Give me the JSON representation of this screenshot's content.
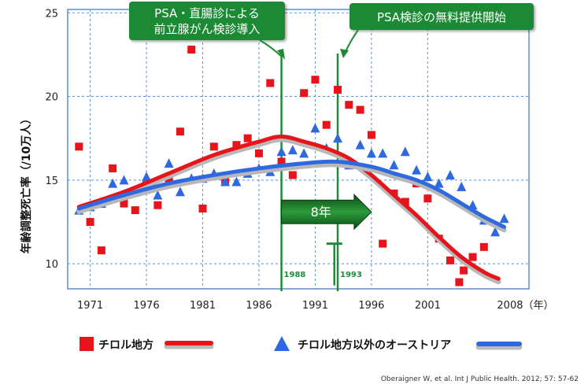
{
  "chart_data": {
    "type": "scatter",
    "ylabel": "年齢調整死亡率（/10万人）",
    "xlim": [
      1969,
      2010
    ],
    "ylim": [
      8.5,
      25.2
    ],
    "y_ticks": [
      10,
      15,
      20,
      25
    ],
    "x_ticks": [
      1971,
      1976,
      1981,
      1986,
      1991,
      1996,
      2001
    ],
    "x_last_tick": "2008（年）",
    "grid": true,
    "series": [
      {
        "name": "チロル地方",
        "marker": "square",
        "color": "#e8141b",
        "points": [
          [
            1970,
            17.0
          ],
          [
            1971,
            12.5
          ],
          [
            1972,
            10.8
          ],
          [
            1973,
            15.7
          ],
          [
            1974,
            13.6
          ],
          [
            1975,
            13.2
          ],
          [
            1976,
            14.7
          ],
          [
            1977,
            13.5
          ],
          [
            1978,
            15.1
          ],
          [
            1979,
            17.9
          ],
          [
            1980,
            22.8
          ],
          [
            1981,
            13.3
          ],
          [
            1982,
            17.0
          ],
          [
            1983,
            15.0
          ],
          [
            1984,
            17.1
          ],
          [
            1985,
            17.5
          ],
          [
            1986,
            16.6
          ],
          [
            1987,
            20.8
          ],
          [
            1988,
            16.1
          ],
          [
            1989,
            15.3
          ],
          [
            1990,
            20.2
          ],
          [
            1991,
            21.0
          ],
          [
            1992,
            18.3
          ],
          [
            1993,
            20.4
          ],
          [
            1994,
            19.5
          ],
          [
            1995,
            19.2
          ],
          [
            1996,
            17.7
          ],
          [
            1997,
            11.2
          ],
          [
            1998,
            14.2
          ],
          [
            1999,
            13.7
          ],
          [
            2000,
            14.8
          ],
          [
            2001,
            13.9
          ],
          [
            2002,
            11.5
          ],
          [
            2003,
            10.2
          ],
          [
            2003.8,
            8.9
          ],
          [
            2004.2,
            9.6
          ],
          [
            2005,
            10.4
          ],
          [
            2006,
            11.0
          ]
        ],
        "trend": [
          [
            1970,
            13.4
          ],
          [
            1974,
            14.3
          ],
          [
            1978,
            15.4
          ],
          [
            1982,
            16.5
          ],
          [
            1986,
            17.3
          ],
          [
            1988,
            17.6
          ],
          [
            1990,
            17.3
          ],
          [
            1992,
            16.9
          ],
          [
            1994,
            16.3
          ],
          [
            1996,
            15.3
          ],
          [
            1998,
            14.1
          ],
          [
            2000,
            12.9
          ],
          [
            2002,
            11.6
          ],
          [
            2004,
            10.4
          ],
          [
            2006,
            9.5
          ],
          [
            2007.3,
            9.1
          ]
        ]
      },
      {
        "name": "チロル地方以外のオーストリア",
        "marker": "triangle",
        "color": "#2f69e0",
        "points": [
          [
            1970,
            13.2
          ],
          [
            1971,
            13.4
          ],
          [
            1972,
            13.6
          ],
          [
            1973,
            14.8
          ],
          [
            1974,
            15.0
          ],
          [
            1975,
            14.3
          ],
          [
            1976,
            15.2
          ],
          [
            1977,
            14.1
          ],
          [
            1978,
            16.0
          ],
          [
            1979,
            14.3
          ],
          [
            1980,
            15.1
          ],
          [
            1981,
            15.1
          ],
          [
            1982,
            15.4
          ],
          [
            1983,
            14.9
          ],
          [
            1984,
            14.9
          ],
          [
            1985,
            15.4
          ],
          [
            1986,
            15.7
          ],
          [
            1987,
            15.5
          ],
          [
            1988,
            16.7
          ],
          [
            1989,
            16.8
          ],
          [
            1990,
            16.6
          ],
          [
            1991,
            18.1
          ],
          [
            1992,
            16.9
          ],
          [
            1993,
            17.5
          ],
          [
            1994,
            15.9
          ],
          [
            1995,
            17.1
          ],
          [
            1996,
            16.6
          ],
          [
            1997,
            16.6
          ],
          [
            1998,
            15.9
          ],
          [
            1999,
            16.7
          ],
          [
            2000,
            15.6
          ],
          [
            2001,
            15.2
          ],
          [
            2002,
            14.8
          ],
          [
            2003,
            15.3
          ],
          [
            2004,
            14.6
          ],
          [
            2005,
            13.5
          ],
          [
            2006,
            12.6
          ],
          [
            2007,
            11.9
          ],
          [
            2007.8,
            12.7
          ]
        ],
        "trend": [
          [
            1970,
            13.3
          ],
          [
            1974,
            14.1
          ],
          [
            1978,
            14.8
          ],
          [
            1982,
            15.3
          ],
          [
            1986,
            15.7
          ],
          [
            1990,
            16.0
          ],
          [
            1993,
            16.1
          ],
          [
            1996,
            15.8
          ],
          [
            1998,
            15.4
          ],
          [
            2000,
            15.0
          ],
          [
            2002,
            14.4
          ],
          [
            2004,
            13.6
          ],
          [
            2006,
            12.8
          ],
          [
            2007.8,
            12.2
          ]
        ]
      }
    ],
    "vlines": [
      {
        "x": 1988,
        "label": "1988",
        "color": "#1e8c3a"
      },
      {
        "x": 1993,
        "label": "1993",
        "color": "#1e8c3a"
      }
    ],
    "annotations": {
      "callout_1": "PSA・直腸診による\n前立腺がん検診導入",
      "callout_2": "PSA検診の無料提供開始",
      "arrow_label": "8年",
      "arrow_from": 1988,
      "arrow_to": 1996,
      "arrow_y": 13.1,
      "error_bar_x": 1992.7,
      "error_bar_y": [
        8.7,
        11.2
      ]
    },
    "legend_placement": "bottom",
    "source": "Oberaigner W, et al. Int J Public Health. 2012; 57: 57-62"
  }
}
